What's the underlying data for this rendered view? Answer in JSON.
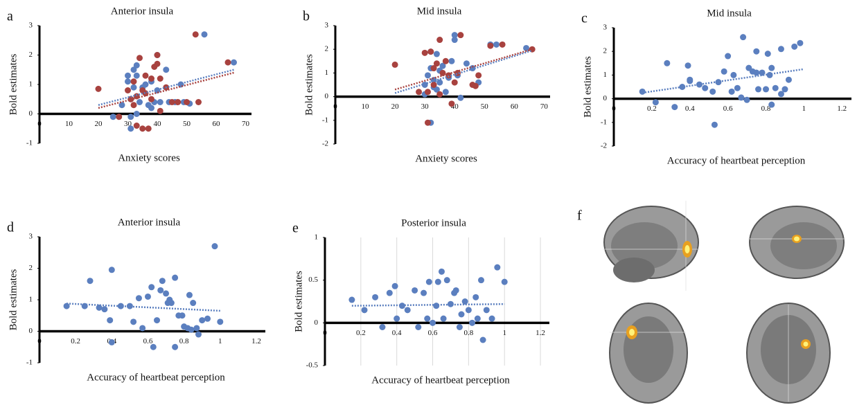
{
  "chart_data": [
    {
      "type": "scatter",
      "panel": "a",
      "title": "Anterior insula",
      "x_label": "Anxiety  scores",
      "y_label": "Bold estimates",
      "xlim": [
        0,
        72
      ],
      "ylim": [
        -1,
        3
      ],
      "xticks": [
        0,
        10,
        20,
        30,
        40,
        50,
        60,
        70
      ],
      "yticks": [
        -1,
        0,
        1,
        2,
        3
      ],
      "grid": false,
      "series": [
        {
          "color": "#5b7fbf",
          "x": [
            25,
            28,
            30,
            30,
            31,
            31,
            32,
            32,
            33,
            33,
            34,
            35,
            36,
            37,
            38,
            38,
            39,
            40,
            40,
            41,
            44,
            46,
            48,
            49,
            51,
            56,
            66,
            31,
            33,
            43
          ],
          "values": [
            -0.1,
            0.3,
            1.3,
            1.1,
            0.5,
            -0.1,
            0.9,
            1.5,
            1.65,
            1.3,
            0.4,
            0.9,
            1.0,
            0.3,
            0.2,
            1.1,
            0.4,
            2.0,
            0.8,
            0.4,
            0.4,
            0.4,
            1.0,
            0.4,
            0.35,
            2.7,
            1.75,
            -0.5,
            0.0,
            1.5
          ],
          "trendline": {
            "x": [
              20,
              66
            ],
            "values": [
              0.3,
              1.5
            ]
          }
        },
        {
          "color": "#a8423f",
          "x": [
            20,
            27,
            30,
            31,
            32,
            32,
            33,
            33,
            34,
            35,
            35,
            36,
            36,
            37,
            38,
            38,
            39,
            40,
            40,
            41,
            41,
            43,
            45,
            47,
            50,
            53,
            54,
            64
          ],
          "values": [
            0.85,
            -0.1,
            0.8,
            0.5,
            0.3,
            1.1,
            -0.4,
            0.6,
            1.9,
            -0.5,
            0.8,
            1.3,
            0.7,
            -0.5,
            1.2,
            0.5,
            1.6,
            1.7,
            2.0,
            0.1,
            1.2,
            0.9,
            0.4,
            0.4,
            0.4,
            2.7,
            0.4,
            1.75
          ],
          "trendline": {
            "x": [
              20,
              66
            ],
            "values": [
              0.2,
              1.4
            ]
          }
        }
      ]
    },
    {
      "type": "scatter",
      "panel": "b",
      "title": "Mid insula",
      "x_label": "Anxiety  scores",
      "y_label": "Bold estimates",
      "xlim": [
        0,
        72
      ],
      "ylim": [
        -2,
        3
      ],
      "xticks": [
        0,
        10,
        20,
        30,
        40,
        50,
        60,
        70
      ],
      "yticks": [
        -2,
        -1,
        0,
        1,
        2,
        3
      ],
      "grid": false,
      "series": [
        {
          "color": "#5b7fbf",
          "x": [
            30,
            30,
            31,
            32,
            32,
            32,
            33,
            34,
            34,
            35,
            35,
            36,
            37,
            38,
            39,
            40,
            40,
            41,
            42,
            44,
            46,
            48,
            52,
            54,
            64,
            33
          ],
          "values": [
            0.1,
            0.5,
            0.9,
            1.9,
            1.2,
            -1.1,
            0.7,
            1.8,
            0.3,
            1.1,
            0.6,
            1.3,
            0.2,
            0.8,
            1.5,
            2.6,
            2.4,
            0.9,
            -0.05,
            1.4,
            1.2,
            0.6,
            2.2,
            2.2,
            2.05,
            0.4
          ],
          "trendline": {
            "x": [
              20,
              66
            ],
            "values": [
              0.15,
              1.95
            ]
          }
        },
        {
          "color": "#a8423f",
          "x": [
            20,
            28,
            30,
            31,
            31,
            32,
            33,
            33,
            34,
            35,
            35,
            36,
            37,
            38,
            39,
            40,
            41,
            42,
            46,
            47,
            48,
            52,
            56,
            66
          ],
          "values": [
            1.35,
            0.2,
            1.85,
            -1.1,
            0.2,
            1.9,
            1.2,
            0.5,
            1.4,
            2.4,
            0.1,
            1.0,
            1.5,
            0.9,
            -0.3,
            0.6,
            1.0,
            2.6,
            0.5,
            0.45,
            0.9,
            2.15,
            2.2,
            2.0
          ],
          "trendline": {
            "x": [
              20,
              66
            ],
            "values": [
              0.3,
              2.0
            ]
          }
        }
      ]
    },
    {
      "type": "scatter",
      "panel": "c",
      "title": "Mid insula",
      "x_label": "Accuracy of heartbeat perception",
      "y_label": "Bold estimates",
      "xlim": [
        0,
        1.25
      ],
      "ylim": [
        -2,
        3
      ],
      "xticks": [
        0,
        0.2,
        0.4,
        0.6,
        0.8,
        1,
        1.2
      ],
      "yticks": [
        -2,
        -1,
        0,
        1,
        2,
        3
      ],
      "grid": false,
      "series": [
        {
          "color": "#5b7fbf",
          "x": [
            0.15,
            0.22,
            0.28,
            0.32,
            0.36,
            0.39,
            0.4,
            0.4,
            0.45,
            0.48,
            0.52,
            0.53,
            0.55,
            0.58,
            0.6,
            0.62,
            0.63,
            0.65,
            0.67,
            0.68,
            0.7,
            0.71,
            0.73,
            0.75,
            0.75,
            0.76,
            0.78,
            0.8,
            0.81,
            0.82,
            0.83,
            0.83,
            0.85,
            0.88,
            0.88,
            0.92,
            0.95,
            0.98,
            0.9
          ],
          "values": [
            0.3,
            -0.15,
            1.5,
            -0.35,
            0.5,
            1.4,
            0.8,
            0.75,
            0.6,
            0.45,
            0.3,
            -1.1,
            0.7,
            1.15,
            1.8,
            0.3,
            1.0,
            0.45,
            0.05,
            2.6,
            -0.05,
            1.3,
            1.15,
            1.1,
            2.0,
            0.4,
            1.1,
            0.4,
            1.9,
            1.0,
            -0.25,
            1.3,
            0.45,
            2.1,
            0.2,
            0.8,
            2.2,
            2.35,
            0.4
          ],
          "trendline": {
            "x": [
              0.15,
              1
            ],
            "values": [
              0.25,
              1.25
            ]
          }
        }
      ]
    },
    {
      "type": "scatter",
      "panel": "d",
      "title": "Anterior insula",
      "x_label": "Accuracy of heartbeat perception",
      "y_label": "Bold estimates",
      "xlim": [
        0,
        1.25
      ],
      "ylim": [
        -1,
        3
      ],
      "xticks": [
        0,
        0.2,
        0.4,
        0.6,
        0.8,
        1,
        1.2
      ],
      "yticks": [
        -1,
        0,
        1,
        2,
        3
      ],
      "grid": false,
      "series": [
        {
          "color": "#5b7fbf",
          "x": [
            0.15,
            0.25,
            0.28,
            0.33,
            0.36,
            0.39,
            0.4,
            0.4,
            0.45,
            0.5,
            0.52,
            0.55,
            0.57,
            0.6,
            0.62,
            0.63,
            0.65,
            0.67,
            0.68,
            0.7,
            0.71,
            0.72,
            0.73,
            0.75,
            0.75,
            0.77,
            0.79,
            0.8,
            0.82,
            0.83,
            0.84,
            0.85,
            0.87,
            0.88,
            0.9,
            0.93,
            0.97,
            1
          ],
          "values": [
            0.8,
            0.8,
            1.6,
            0.75,
            0.7,
            0.35,
            1.95,
            -0.35,
            0.8,
            0.8,
            0.3,
            1.05,
            0.1,
            1.1,
            1.4,
            -0.5,
            0.35,
            1.3,
            1.6,
            1.2,
            0.9,
            1.0,
            0.9,
            -0.5,
            1.7,
            0.5,
            0.5,
            0.15,
            0.1,
            1.15,
            0.05,
            0.9,
            0.1,
            -0.1,
            0.35,
            0.4,
            2.7,
            0.3
          ],
          "trendline": {
            "x": [
              0.15,
              1
            ],
            "values": [
              0.88,
              0.65
            ]
          }
        }
      ]
    },
    {
      "type": "scatter",
      "panel": "e",
      "title": "Posterior insula",
      "x_label": "Accuracy of heartbeat perception",
      "y_label": "Bold estimates",
      "xlim": [
        0,
        1.25
      ],
      "ylim": [
        -0.5,
        1
      ],
      "xticks": [
        0,
        0.2,
        0.4,
        0.6,
        0.8,
        1,
        1.2
      ],
      "yticks": [
        -0.5,
        0,
        0.5,
        1
      ],
      "grid": true,
      "series": [
        {
          "color": "#5b7fbf",
          "x": [
            0.15,
            0.22,
            0.28,
            0.32,
            0.36,
            0.39,
            0.4,
            0.43,
            0.46,
            0.5,
            0.52,
            0.55,
            0.57,
            0.58,
            0.6,
            0.62,
            0.63,
            0.65,
            0.66,
            0.68,
            0.7,
            0.72,
            0.73,
            0.75,
            0.76,
            0.78,
            0.8,
            0.82,
            0.84,
            0.85,
            0.87,
            0.88,
            0.9,
            0.93,
            0.96,
            1
          ],
          "values": [
            0.27,
            0.15,
            0.3,
            -0.05,
            0.35,
            0.43,
            0.05,
            0.2,
            0.15,
            0.38,
            -0.05,
            0.35,
            0.05,
            0.48,
            0.0,
            0.2,
            0.48,
            0.6,
            0.05,
            0.5,
            0.22,
            0.35,
            0.38,
            -0.05,
            0.1,
            0.25,
            0.15,
            0.0,
            0.3,
            0.05,
            0.5,
            -0.2,
            0.15,
            0.05,
            0.65,
            0.48
          ],
          "trendline": {
            "x": [
              0.15,
              1
            ],
            "values": [
              0.2,
              0.22
            ]
          }
        }
      ]
    }
  ],
  "image_panel": {
    "label": "f"
  }
}
